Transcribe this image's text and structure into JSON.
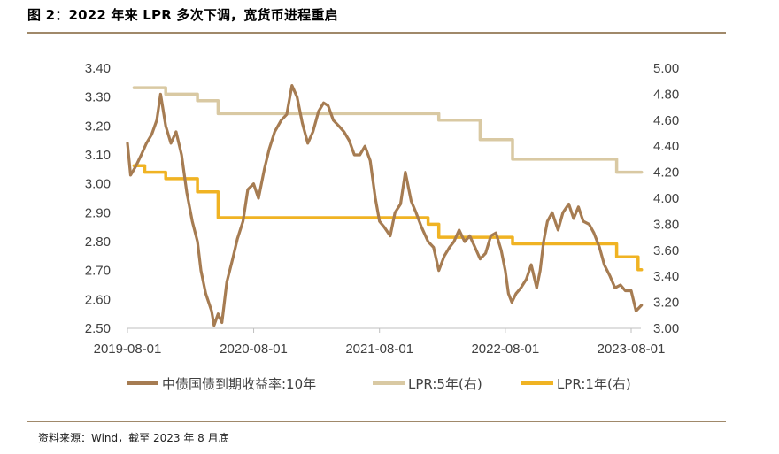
{
  "title": "图 2：2022 年来 LPR 多次下调，宽货币进程重启",
  "source": "资料来源：Wind，截至 2023 年 8 月底",
  "colors": {
    "bond10y": "#a67c52",
    "lpr5y": "#d9c9a3",
    "lpr1y": "#f0b323",
    "axis": "#bfbfbf",
    "rule": "#a0896a"
  },
  "chart_data": {
    "type": "line",
    "x_ticks": [
      "2019-08-01",
      "2020-08-01",
      "2021-08-01",
      "2022-08-01",
      "2023-08-01"
    ],
    "y_left": {
      "min": 2.5,
      "max": 3.4,
      "ticks": [
        "2.50",
        "2.60",
        "2.70",
        "2.80",
        "2.90",
        "3.00",
        "3.10",
        "3.20",
        "3.30",
        "3.40"
      ]
    },
    "y_right": {
      "min": 3.0,
      "max": 5.0,
      "ticks": [
        "3.00",
        "3.20",
        "3.40",
        "3.60",
        "3.80",
        "4.00",
        "4.20",
        "4.40",
        "4.60",
        "4.80",
        "5.00"
      ]
    },
    "legend_position": "bottom",
    "series": [
      {
        "name": "中债国债到期收益率:10年",
        "axis": "left",
        "color": "#a67c52",
        "points": [
          [
            "2019-08-01",
            3.14
          ],
          [
            "2019-08-10",
            3.03
          ],
          [
            "2019-08-25",
            3.06
          ],
          [
            "2019-09-10",
            3.1
          ],
          [
            "2019-09-25",
            3.14
          ],
          [
            "2019-10-10",
            3.17
          ],
          [
            "2019-10-25",
            3.22
          ],
          [
            "2019-11-05",
            3.31
          ],
          [
            "2019-11-20",
            3.2
          ],
          [
            "2019-12-05",
            3.14
          ],
          [
            "2019-12-20",
            3.18
          ],
          [
            "2020-01-05",
            3.1
          ],
          [
            "2020-01-20",
            2.97
          ],
          [
            "2020-02-05",
            2.87
          ],
          [
            "2020-02-20",
            2.8
          ],
          [
            "2020-03-01",
            2.7
          ],
          [
            "2020-03-15",
            2.62
          ],
          [
            "2020-04-01",
            2.56
          ],
          [
            "2020-04-08",
            2.51
          ],
          [
            "2020-04-20",
            2.55
          ],
          [
            "2020-05-01",
            2.52
          ],
          [
            "2020-05-15",
            2.66
          ],
          [
            "2020-06-01",
            2.74
          ],
          [
            "2020-06-15",
            2.81
          ],
          [
            "2020-07-01",
            2.87
          ],
          [
            "2020-07-15",
            2.98
          ],
          [
            "2020-08-01",
            3.0
          ],
          [
            "2020-08-15",
            2.95
          ],
          [
            "2020-09-01",
            3.05
          ],
          [
            "2020-09-15",
            3.12
          ],
          [
            "2020-10-01",
            3.18
          ],
          [
            "2020-10-20",
            3.22
          ],
          [
            "2020-11-05",
            3.24
          ],
          [
            "2020-11-20",
            3.34
          ],
          [
            "2020-12-05",
            3.3
          ],
          [
            "2020-12-20",
            3.21
          ],
          [
            "2021-01-05",
            3.14
          ],
          [
            "2021-01-20",
            3.18
          ],
          [
            "2021-02-05",
            3.25
          ],
          [
            "2021-02-20",
            3.28
          ],
          [
            "2021-03-05",
            3.27
          ],
          [
            "2021-03-20",
            3.22
          ],
          [
            "2021-04-05",
            3.2
          ],
          [
            "2021-04-20",
            3.18
          ],
          [
            "2021-05-05",
            3.15
          ],
          [
            "2021-05-20",
            3.1
          ],
          [
            "2021-06-05",
            3.1
          ],
          [
            "2021-06-20",
            3.13
          ],
          [
            "2021-07-05",
            3.08
          ],
          [
            "2021-07-20",
            2.95
          ],
          [
            "2021-08-01",
            2.87
          ],
          [
            "2021-08-15",
            2.85
          ],
          [
            "2021-09-01",
            2.82
          ],
          [
            "2021-09-15",
            2.9
          ],
          [
            "2021-10-01",
            2.93
          ],
          [
            "2021-10-15",
            3.04
          ],
          [
            "2021-11-01",
            2.94
          ],
          [
            "2021-11-15",
            2.9
          ],
          [
            "2021-12-01",
            2.85
          ],
          [
            "2021-12-20",
            2.8
          ],
          [
            "2022-01-05",
            2.78
          ],
          [
            "2022-01-20",
            2.7
          ],
          [
            "2022-02-05",
            2.75
          ],
          [
            "2022-02-20",
            2.78
          ],
          [
            "2022-03-05",
            2.8
          ],
          [
            "2022-03-20",
            2.84
          ],
          [
            "2022-04-05",
            2.8
          ],
          [
            "2022-04-20",
            2.82
          ],
          [
            "2022-05-05",
            2.78
          ],
          [
            "2022-05-20",
            2.74
          ],
          [
            "2022-06-05",
            2.76
          ],
          [
            "2022-06-20",
            2.82
          ],
          [
            "2022-07-05",
            2.83
          ],
          [
            "2022-07-20",
            2.77
          ],
          [
            "2022-08-01",
            2.7
          ],
          [
            "2022-08-10",
            2.62
          ],
          [
            "2022-08-20",
            2.59
          ],
          [
            "2022-09-01",
            2.62
          ],
          [
            "2022-09-15",
            2.64
          ],
          [
            "2022-10-01",
            2.67
          ],
          [
            "2022-10-15",
            2.72
          ],
          [
            "2022-10-31",
            2.64
          ],
          [
            "2022-11-10",
            2.7
          ],
          [
            "2022-11-20",
            2.8
          ],
          [
            "2022-12-01",
            2.87
          ],
          [
            "2022-12-15",
            2.9
          ],
          [
            "2023-01-01",
            2.84
          ],
          [
            "2023-01-15",
            2.9
          ],
          [
            "2023-02-01",
            2.93
          ],
          [
            "2023-02-15",
            2.88
          ],
          [
            "2023-03-01",
            2.92
          ],
          [
            "2023-03-15",
            2.87
          ],
          [
            "2023-04-01",
            2.86
          ],
          [
            "2023-04-15",
            2.83
          ],
          [
            "2023-05-01",
            2.78
          ],
          [
            "2023-05-15",
            2.72
          ],
          [
            "2023-06-01",
            2.68
          ],
          [
            "2023-06-15",
            2.64
          ],
          [
            "2023-07-01",
            2.65
          ],
          [
            "2023-07-15",
            2.63
          ],
          [
            "2023-08-01",
            2.63
          ],
          [
            "2023-08-15",
            2.56
          ],
          [
            "2023-08-31",
            2.58
          ]
        ]
      },
      {
        "name": "LPR:5年(右)",
        "axis": "right",
        "color": "#d9c9a3",
        "step": true,
        "points": [
          [
            "2019-08-20",
            4.85
          ],
          [
            "2019-11-20",
            4.8
          ],
          [
            "2020-02-20",
            4.75
          ],
          [
            "2020-04-20",
            4.65
          ],
          [
            "2022-01-20",
            4.6
          ],
          [
            "2022-05-20",
            4.45
          ],
          [
            "2022-08-22",
            4.3
          ],
          [
            "2023-06-20",
            4.2
          ],
          [
            "2023-08-31",
            4.2
          ]
        ]
      },
      {
        "name": "LPR:1年(右)",
        "axis": "right",
        "color": "#f0b323",
        "step": true,
        "points": [
          [
            "2019-08-20",
            4.25
          ],
          [
            "2019-09-20",
            4.2
          ],
          [
            "2019-11-20",
            4.15
          ],
          [
            "2020-02-20",
            4.05
          ],
          [
            "2020-04-20",
            3.85
          ],
          [
            "2021-12-20",
            3.8
          ],
          [
            "2022-01-20",
            3.7
          ],
          [
            "2022-08-22",
            3.65
          ],
          [
            "2023-06-20",
            3.55
          ],
          [
            "2023-08-21",
            3.45
          ],
          [
            "2023-08-31",
            3.45
          ]
        ]
      }
    ]
  }
}
